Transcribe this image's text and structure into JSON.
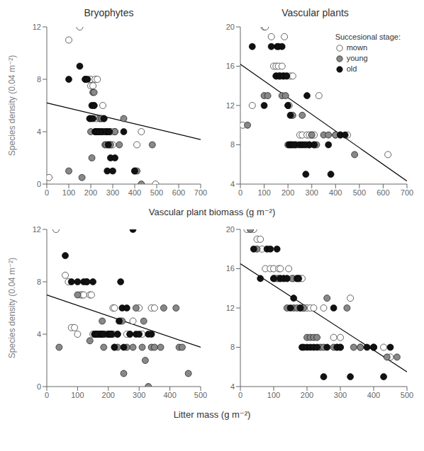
{
  "chart_data": [
    {
      "type": "scatter",
      "title": "Bryophytes",
      "x_label": "Vascular plant biomass (g m⁻²)",
      "y_label": "Species density (0.04 m⁻²)",
      "xlim": [
        0,
        700
      ],
      "ylim": [
        0,
        12
      ],
      "xticks": [
        0,
        100,
        200,
        300,
        400,
        500,
        600,
        700
      ],
      "yticks": [
        0,
        4,
        8,
        12
      ],
      "grid": false,
      "series": [
        {
          "type": "line",
          "color": "black",
          "x": [
            0,
            700
          ],
          "values": [
            6.2,
            3.4
          ]
        },
        {
          "name": "mown",
          "type": "scatter",
          "color": "white",
          "x": [
            10,
            100,
            150,
            175,
            200,
            200,
            210,
            215,
            220,
            225,
            230,
            235,
            240,
            245,
            250,
            255,
            260,
            265,
            270,
            275,
            280,
            285,
            290,
            295,
            300,
            310,
            410,
            430,
            495
          ],
          "values": [
            0.5,
            11,
            12,
            8,
            8,
            7.5,
            7.5,
            6,
            8,
            5,
            8,
            4,
            4,
            5,
            4,
            6,
            4,
            4,
            4,
            4,
            4,
            4,
            3,
            4,
            3,
            4,
            3,
            4,
            0
          ]
        },
        {
          "name": "young",
          "type": "scatter",
          "color": "#888888",
          "x": [
            100,
            160,
            200,
            205,
            210,
            215,
            220,
            235,
            240,
            250,
            255,
            260,
            265,
            270,
            275,
            280,
            290,
            310,
            330,
            350,
            400,
            410,
            430,
            480
          ],
          "values": [
            1,
            0.5,
            4,
            2,
            7,
            7,
            4,
            4,
            5,
            5,
            4,
            5,
            3,
            3,
            4,
            3,
            3,
            4,
            3,
            5,
            1,
            1,
            0,
            3
          ]
        },
        {
          "name": "old",
          "type": "scatter",
          "color": "#111111",
          "x": [
            100,
            150,
            175,
            185,
            195,
            200,
            205,
            210,
            215,
            220,
            225,
            230,
            240,
            250,
            260,
            270,
            275,
            280,
            285,
            290,
            300,
            310,
            350,
            400
          ],
          "values": [
            8,
            9,
            8,
            8,
            5,
            5,
            6,
            5,
            6,
            4,
            4,
            4,
            4,
            4,
            5,
            4,
            1,
            3,
            4,
            2,
            1,
            2,
            4,
            1
          ]
        }
      ]
    },
    {
      "type": "scatter",
      "title": "Vascular plants",
      "xlim": [
        0,
        700
      ],
      "ylim": [
        4,
        20
      ],
      "xticks": [
        0,
        100,
        200,
        300,
        400,
        500,
        600,
        700
      ],
      "yticks": [
        4,
        8,
        12,
        16,
        20
      ],
      "grid": false,
      "legend": "upper right",
      "legend_title": "Succesional stage:",
      "series": [
        {
          "type": "line",
          "color": "black",
          "x": [
            0,
            700
          ],
          "values": [
            16.2,
            4.3
          ]
        },
        {
          "name": "mown",
          "type": "scatter",
          "color": "white",
          "x": [
            10,
            50,
            100,
            105,
            130,
            140,
            150,
            160,
            165,
            170,
            175,
            180,
            185,
            195,
            200,
            205,
            210,
            220,
            250,
            260,
            280,
            290,
            300,
            310,
            330,
            400,
            450,
            620
          ],
          "values": [
            10,
            12,
            20,
            20,
            19,
            16,
            16,
            16,
            15,
            15,
            16,
            15,
            19,
            15,
            12,
            12,
            15,
            15,
            9,
            9,
            9,
            9,
            9,
            9,
            13,
            9,
            9,
            7
          ]
        },
        {
          "name": "young",
          "type": "scatter",
          "color": "#888888",
          "x": [
            30,
            100,
            115,
            150,
            160,
            175,
            185,
            190,
            200,
            210,
            220,
            230,
            240,
            260,
            280,
            290,
            300,
            310,
            320,
            350,
            370,
            400,
            420,
            480
          ],
          "values": [
            10,
            13,
            13,
            15,
            15,
            13,
            15,
            13,
            8,
            8,
            11,
            8,
            8,
            11,
            8,
            8,
            9,
            8,
            8,
            9,
            9,
            9,
            9,
            7
          ]
        },
        {
          "name": "old",
          "type": "scatter",
          "color": "#111111",
          "x": [
            50,
            100,
            130,
            150,
            155,
            160,
            165,
            175,
            180,
            195,
            200,
            205,
            210,
            215,
            220,
            230,
            250,
            260,
            270,
            275,
            280,
            290,
            310,
            370,
            380,
            420,
            440
          ],
          "values": [
            18,
            12,
            18,
            15,
            18,
            18,
            15,
            18,
            15,
            15,
            12,
            8,
            11,
            8,
            8,
            8,
            8,
            8,
            8,
            5,
            13,
            8,
            8,
            8,
            5,
            9,
            9
          ]
        }
      ]
    },
    {
      "type": "scatter",
      "x_label": "Litter mass (g m⁻²)",
      "y_label": "Species density (0.04 m⁻²)",
      "xlim": [
        0,
        500
      ],
      "ylim": [
        0,
        12
      ],
      "xticks": [
        0,
        100,
        200,
        300,
        400,
        500
      ],
      "yticks": [
        0,
        4,
        8,
        12
      ],
      "grid": false,
      "series": [
        {
          "type": "line",
          "color": "black",
          "x": [
            0,
            500
          ],
          "values": [
            7.0,
            3.0
          ]
        },
        {
          "name": "mown",
          "type": "scatter",
          "color": "white",
          "x": [
            30,
            60,
            70,
            80,
            90,
            100,
            110,
            115,
            120,
            130,
            140,
            145,
            150,
            160,
            170,
            175,
            180,
            190,
            200,
            210,
            215,
            220,
            230,
            240,
            260,
            270,
            280,
            300,
            310,
            340,
            350
          ],
          "values": [
            12,
            8.5,
            8,
            4.5,
            4.5,
            4,
            7,
            7,
            7,
            8,
            7,
            7,
            4,
            4,
            4,
            4,
            4,
            4,
            4,
            4,
            6,
            6,
            4,
            5,
            4,
            4,
            5,
            6,
            4,
            6,
            6
          ]
        },
        {
          "name": "young",
          "type": "scatter",
          "color": "#888888",
          "x": [
            40,
            100,
            140,
            160,
            170,
            180,
            185,
            200,
            205,
            210,
            215,
            220,
            230,
            245,
            250,
            260,
            280,
            290,
            310,
            315,
            320,
            330,
            340,
            350,
            370,
            380,
            420,
            430,
            440,
            460
          ],
          "values": [
            3,
            7,
            3.5,
            4,
            4,
            5,
            3,
            4,
            4,
            4,
            4,
            3,
            3,
            5,
            1,
            3,
            3,
            6,
            3,
            5,
            2,
            0,
            3,
            3,
            3,
            6,
            6,
            3,
            3,
            1
          ]
        },
        {
          "name": "old",
          "type": "scatter",
          "color": "#111111",
          "x": [
            60,
            80,
            100,
            120,
            130,
            150,
            155,
            160,
            165,
            175,
            180,
            185,
            200,
            205,
            210,
            220,
            230,
            235,
            240,
            245,
            250,
            260,
            270,
            280,
            290,
            300,
            330,
            340
          ],
          "values": [
            10,
            8,
            8,
            8,
            8,
            8,
            4,
            4,
            4,
            4,
            4,
            4,
            4,
            4,
            4,
            3,
            4,
            5,
            8,
            6,
            3,
            6,
            4,
            12,
            4,
            4,
            4,
            4
          ]
        }
      ]
    },
    {
      "type": "scatter",
      "xlim": [
        0,
        500
      ],
      "ylim": [
        4,
        20
      ],
      "xticks": [
        0,
        100,
        200,
        300,
        400,
        500
      ],
      "yticks": [
        4,
        8,
        12,
        16,
        20
      ],
      "grid": false,
      "series": [
        {
          "type": "line",
          "color": "black",
          "x": [
            0,
            500
          ],
          "values": [
            16.5,
            5.5
          ]
        },
        {
          "name": "mown",
          "type": "scatter",
          "color": "white",
          "x": [
            20,
            40,
            50,
            60,
            65,
            75,
            90,
            100,
            105,
            110,
            115,
            120,
            130,
            140,
            145,
            160,
            170,
            175,
            180,
            185,
            190,
            200,
            210,
            220,
            250,
            280,
            300,
            330,
            360,
            400,
            430,
            450
          ],
          "values": [
            20,
            20,
            19,
            19,
            18,
            16,
            16,
            16,
            15,
            15,
            16,
            16,
            15,
            15,
            16,
            15,
            15,
            15,
            15,
            15,
            12,
            12,
            12,
            12,
            12,
            9,
            9,
            13,
            8,
            8,
            8,
            7
          ]
        },
        {
          "name": "young",
          "type": "scatter",
          "color": "#888888",
          "x": [
            30,
            50,
            100,
            115,
            120,
            140,
            155,
            160,
            170,
            180,
            190,
            200,
            210,
            220,
            230,
            240,
            250,
            260,
            280,
            290,
            300,
            320,
            340,
            360,
            400,
            440,
            470
          ],
          "values": [
            20,
            18,
            15,
            15,
            15,
            12,
            15,
            12,
            12,
            12,
            12,
            9,
            9,
            9,
            9,
            8,
            8,
            13,
            8,
            8,
            8,
            12,
            8,
            8,
            8,
            7,
            7
          ]
        },
        {
          "name": "old",
          "type": "scatter",
          "color": "#111111",
          "x": [
            40,
            60,
            80,
            90,
            100,
            110,
            120,
            130,
            140,
            150,
            160,
            170,
            175,
            180,
            185,
            190,
            200,
            210,
            220,
            230,
            250,
            260,
            280,
            290,
            300,
            330,
            380,
            400,
            430,
            450
          ],
          "values": [
            18,
            15,
            18,
            18,
            15,
            18,
            15,
            15,
            15,
            12,
            13,
            15,
            15,
            12,
            8,
            8,
            8,
            8,
            8,
            8,
            5,
            8,
            12,
            8,
            8,
            5,
            8,
            8,
            5,
            8
          ]
        }
      ]
    }
  ]
}
